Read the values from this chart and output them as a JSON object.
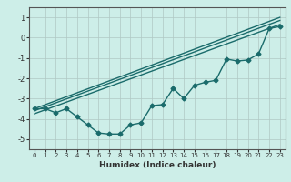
{
  "xlabel": "Humidex (Indice chaleur)",
  "ylabel": "",
  "bg_color": "#cdeee8",
  "grid_color": "#b0c8c4",
  "line_color": "#1a6b6b",
  "xlim": [
    -0.5,
    23.5
  ],
  "ylim": [
    -5.5,
    1.5
  ],
  "yticks": [
    1,
    0,
    -1,
    -2,
    -3,
    -4,
    -5
  ],
  "xticks": [
    0,
    1,
    2,
    3,
    4,
    5,
    6,
    7,
    8,
    9,
    10,
    11,
    12,
    13,
    14,
    15,
    16,
    17,
    18,
    19,
    20,
    21,
    22,
    23
  ],
  "jagged_x": [
    0,
    1,
    2,
    3,
    4,
    5,
    6,
    7,
    8,
    9,
    10,
    11,
    12,
    13,
    14,
    15,
    16,
    17,
    18,
    19,
    20,
    21,
    22,
    23
  ],
  "jagged_y": [
    -3.5,
    -3.5,
    -3.7,
    -3.5,
    -3.9,
    -4.3,
    -4.7,
    -4.75,
    -4.75,
    -4.3,
    -4.2,
    -3.35,
    -3.3,
    -2.5,
    -3.0,
    -2.35,
    -2.2,
    -2.1,
    -1.05,
    -1.15,
    -1.1,
    -0.8,
    0.45,
    0.55
  ],
  "line1_x": [
    0,
    23
  ],
  "line1_y": [
    -3.5,
    1.0
  ],
  "line2_x": [
    0,
    23
  ],
  "line2_y": [
    -3.6,
    0.85
  ],
  "line3_x": [
    0,
    23
  ],
  "line3_y": [
    -3.75,
    0.65
  ],
  "marker_size": 2.5,
  "line_width": 1.0,
  "figwidth": 3.2,
  "figheight": 2.0,
  "dpi": 100
}
